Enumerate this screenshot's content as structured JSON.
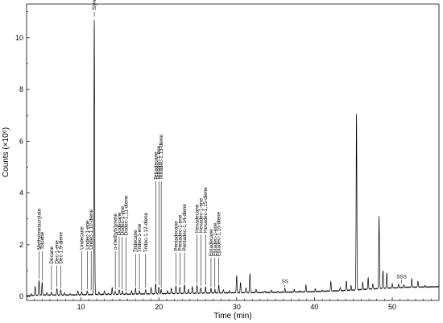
{
  "chart_data": {
    "type": "line",
    "xlabel": "Time (min)",
    "ylabel": "Counts (×10⁶)",
    "xlim": [
      3,
      56
    ],
    "ylim": [
      -0.15,
      11.3
    ],
    "xticks": [
      10,
      20,
      30,
      40,
      50
    ],
    "yticks": [
      0,
      2,
      4,
      6,
      8,
      10
    ],
    "grid": false,
    "legend": "none",
    "baseline": [
      [
        3.0,
        0.03
      ],
      [
        5.0,
        0.06
      ],
      [
        8.0,
        0.06
      ],
      [
        12.0,
        0.08
      ],
      [
        16.0,
        0.09
      ],
      [
        20.0,
        0.11
      ],
      [
        25.0,
        0.13
      ],
      [
        30.0,
        0.15
      ],
      [
        35.0,
        0.16
      ],
      [
        40.0,
        0.19
      ],
      [
        45.0,
        0.25
      ],
      [
        47.0,
        0.29
      ],
      [
        49.0,
        0.32
      ],
      [
        52.0,
        0.36
      ],
      [
        56.0,
        0.38
      ]
    ],
    "peaks": [
      [
        3.6,
        0.1
      ],
      [
        4.1,
        0.38
      ],
      [
        4.6,
        0.62
      ],
      [
        5.0,
        0.55
      ],
      [
        5.6,
        0.15
      ],
      [
        6.2,
        0.18
      ],
      [
        6.9,
        0.32
      ],
      [
        7.4,
        0.26
      ],
      [
        7.9,
        0.15
      ],
      [
        8.6,
        0.12
      ],
      [
        9.6,
        0.22
      ],
      [
        10.1,
        0.18
      ],
      [
        10.8,
        0.22
      ],
      [
        11.7,
        10.75
      ],
      [
        12.3,
        0.18
      ],
      [
        13.0,
        0.22
      ],
      [
        13.5,
        0.12
      ],
      [
        14.0,
        0.35
      ],
      [
        14.4,
        0.22
      ],
      [
        14.9,
        0.28
      ],
      [
        15.3,
        0.22
      ],
      [
        15.8,
        0.15
      ],
      [
        16.5,
        0.22
      ],
      [
        17.0,
        0.32
      ],
      [
        17.5,
        0.22
      ],
      [
        18.3,
        0.28
      ],
      [
        19.0,
        0.35
      ],
      [
        19.6,
        0.5
      ],
      [
        20.0,
        0.38
      ],
      [
        20.3,
        0.28
      ],
      [
        21.1,
        0.22
      ],
      [
        21.6,
        0.32
      ],
      [
        22.2,
        0.42
      ],
      [
        22.7,
        0.38
      ],
      [
        23.3,
        0.45
      ],
      [
        23.8,
        0.28
      ],
      [
        24.3,
        0.38
      ],
      [
        24.9,
        0.45
      ],
      [
        25.4,
        0.35
      ],
      [
        26.0,
        0.38
      ],
      [
        26.7,
        0.32
      ],
      [
        27.2,
        0.28
      ],
      [
        27.7,
        0.45
      ],
      [
        28.3,
        0.28
      ],
      [
        29.1,
        0.22
      ],
      [
        30.0,
        0.82
      ],
      [
        30.5,
        0.55
      ],
      [
        31.2,
        0.35
      ],
      [
        31.7,
        0.9
      ],
      [
        32.5,
        0.28
      ],
      [
        33.6,
        0.22
      ],
      [
        34.5,
        0.25
      ],
      [
        35.3,
        0.2
      ],
      [
        36.2,
        0.32
      ],
      [
        37.4,
        0.28
      ],
      [
        38.1,
        0.22
      ],
      [
        38.9,
        0.45
      ],
      [
        40.1,
        0.3
      ],
      [
        41.0,
        0.25
      ],
      [
        42.1,
        0.6
      ],
      [
        43.3,
        0.35
      ],
      [
        44.1,
        0.62
      ],
      [
        44.7,
        0.42
      ],
      [
        45.4,
        7.05
      ],
      [
        46.2,
        0.55
      ],
      [
        46.9,
        0.72
      ],
      [
        47.5,
        0.5
      ],
      [
        48.3,
        3.1
      ],
      [
        48.8,
        1.0
      ],
      [
        49.3,
        0.9
      ],
      [
        50.0,
        0.5
      ],
      [
        50.8,
        0.48
      ],
      [
        51.5,
        0.45
      ],
      [
        52.5,
        0.68
      ],
      [
        53.3,
        0.6
      ],
      [
        54.2,
        0.42
      ]
    ],
    "annotations": [
      {
        "label": "Methylmetacrylate",
        "x": 4.6,
        "y": 0.62,
        "ty": 1.75
      },
      {
        "label": "Toluene",
        "x": 5.0,
        "y": 0.55,
        "ty": 1.75
      },
      {
        "label": "Decane",
        "x": 6.2,
        "y": 0.18,
        "ty": 1.2
      },
      {
        "label": "Dec-1-ene",
        "x": 6.9,
        "y": 0.32,
        "ty": 1.2
      },
      {
        "label": "Dec-1,9-diene",
        "x": 7.4,
        "y": 0.26,
        "ty": 1.2
      },
      {
        "label": "Undecane",
        "x": 10.1,
        "y": 0.18,
        "ty": 1.75
      },
      {
        "label": "Undec-1-ene",
        "x": 10.8,
        "y": 0.22,
        "ty": 1.75
      },
      {
        "label": "Undec-1,10-diene",
        "x": 11.3,
        "y": 0.2,
        "ty": 1.75
      },
      {
        "label": "Styrene",
        "x": 11.7,
        "y": 10.75,
        "ty": 11.0
      },
      {
        "label": "α-methylstyrene",
        "x": 14.4,
        "y": 0.22,
        "ty": 1.75
      },
      {
        "label": "Dodecane",
        "x": 14.9,
        "y": 0.28,
        "ty": 2.3
      },
      {
        "label": "Dodec-1-ene",
        "x": 15.3,
        "y": 0.22,
        "ty": 2.3
      },
      {
        "label": "Dodec-1,11-diene",
        "x": 15.8,
        "y": 0.15,
        "ty": 2.3
      },
      {
        "label": "Tridecane",
        "x": 17.0,
        "y": 0.32,
        "ty": 1.65
      },
      {
        "label": "Tridec-1-ene",
        "x": 17.5,
        "y": 0.22,
        "ty": 1.65
      },
      {
        "label": "Tridec-1,12-diene",
        "x": 18.3,
        "y": 0.28,
        "ty": 1.65
      },
      {
        "label": "Tetradecane",
        "x": 19.6,
        "y": 0.5,
        "ty": 4.45
      },
      {
        "label": "Tetradec-1-ene",
        "x": 20.0,
        "y": 0.38,
        "ty": 4.45
      },
      {
        "label": "Tetradec-1,13-diene",
        "x": 20.3,
        "y": 0.28,
        "ty": 4.45
      },
      {
        "label": "Pentadecane",
        "x": 22.2,
        "y": 0.42,
        "ty": 1.7
      },
      {
        "label": "Pentadec-1-ene",
        "x": 22.7,
        "y": 0.38,
        "ty": 1.7
      },
      {
        "label": "Pentadec-1,14-diene",
        "x": 23.3,
        "y": 0.45,
        "ty": 1.7
      },
      {
        "label": "Hexadecane",
        "x": 24.9,
        "y": 0.45,
        "ty": 2.4
      },
      {
        "label": "Hexadec-1-ene",
        "x": 25.4,
        "y": 0.35,
        "ty": 2.4
      },
      {
        "label": "Hexadec-1,15-diene",
        "x": 26.0,
        "y": 0.38,
        "ty": 2.4
      },
      {
        "label": "Eptadecane",
        "x": 26.7,
        "y": 0.32,
        "ty": 1.5
      },
      {
        "label": "Eptadec-1-ene",
        "x": 27.2,
        "y": 0.28,
        "ty": 1.5
      },
      {
        "label": "Eptadec-1,16-diene",
        "x": 27.7,
        "y": 0.45,
        "ty": 1.5
      },
      {
        "label": "SS",
        "x": 36.2,
        "y": 0.32,
        "ty": 0.45
      },
      {
        "label": "SSS",
        "x": 51.2,
        "y": 0.45,
        "ty": 0.65
      }
    ]
  }
}
